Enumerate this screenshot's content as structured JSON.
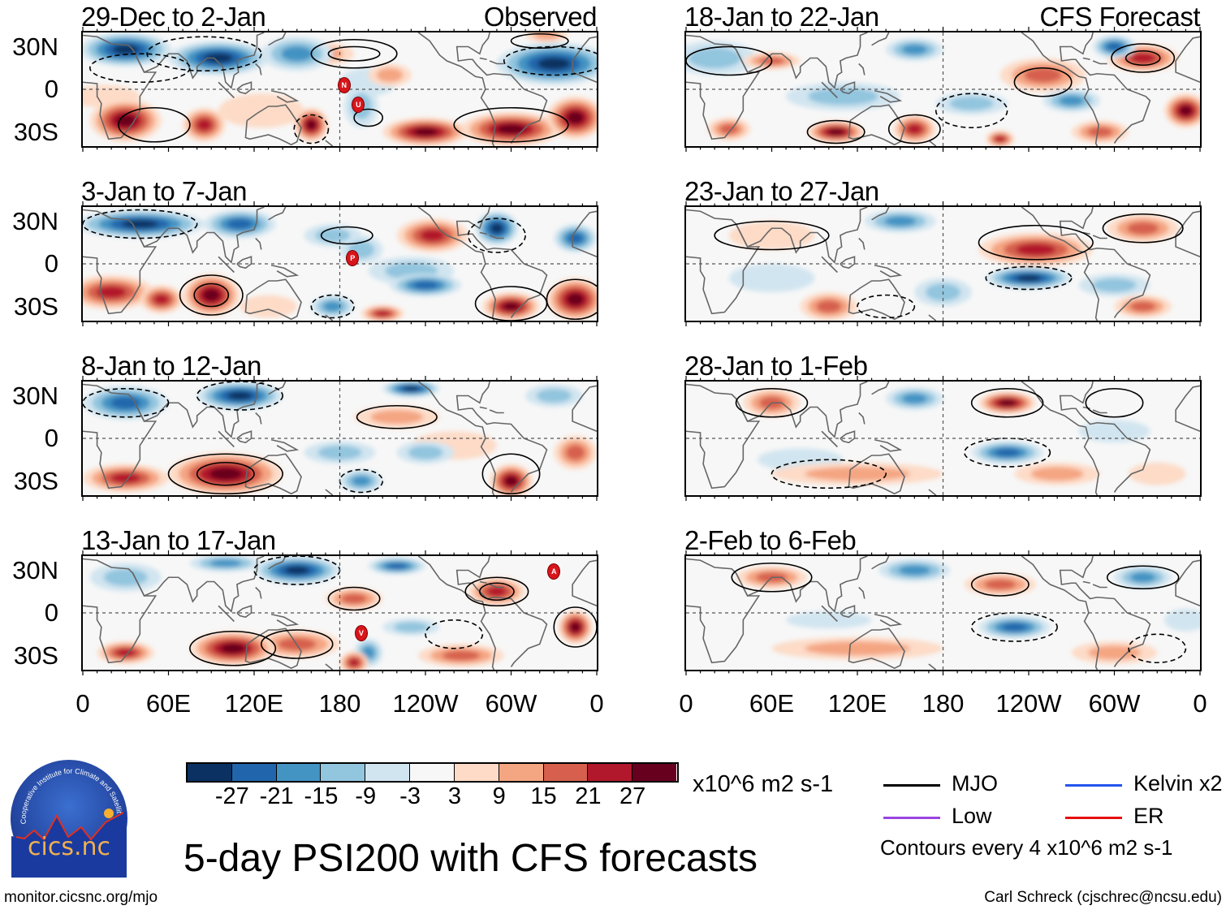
{
  "panels": [
    {
      "title": "29-Dec to 2-Jan",
      "tag": "Observed",
      "markers": [
        {
          "letter": "N",
          "lon": 183,
          "lat": 3
        },
        {
          "letter": "U",
          "lon": 193,
          "lat": -11
        }
      ]
    },
    {
      "title": "3-Jan to 7-Jan",
      "tag": "",
      "markers": [
        {
          "letter": "P",
          "lon": 189,
          "lat": 4
        }
      ]
    },
    {
      "title": "8-Jan to 12-Jan",
      "tag": "",
      "markers": []
    },
    {
      "title": "13-Jan to 17-Jan",
      "tag": "",
      "markers": [
        {
          "letter": "A",
          "lon": 330,
          "lat": 29
        },
        {
          "letter": "V",
          "lon": 195,
          "lat": -14
        }
      ]
    },
    {
      "title": "18-Jan to 22-Jan",
      "tag": "CFS Forecast",
      "markers": []
    },
    {
      "title": "23-Jan to 27-Jan",
      "tag": "",
      "markers": []
    },
    {
      "title": "28-Jan to 1-Feb",
      "tag": "",
      "markers": []
    },
    {
      "title": "2-Feb to 6-Feb",
      "tag": "",
      "markers": []
    }
  ],
  "axes": {
    "y_ticks": [
      "30N",
      "0",
      "30S"
    ],
    "x_ticks": [
      "0",
      "60E",
      "120E",
      "180",
      "120W",
      "60W",
      "0"
    ]
  },
  "colorbar": {
    "colors": [
      "#0a3161",
      "#2166ac",
      "#4393c3",
      "#92c5de",
      "#d1e5f0",
      "#f7f7f7",
      "#fddbc7",
      "#f4a582",
      "#d6604d",
      "#b2182b",
      "#67001f"
    ],
    "labels": [
      "-27",
      "-21",
      "-15",
      "-9",
      "-3",
      "3",
      "9",
      "15",
      "21",
      "27"
    ],
    "units": "x10^6 m2 s-1"
  },
  "legend": {
    "items": [
      {
        "label": "MJO",
        "color": "#000000"
      },
      {
        "label": "Kelvin x2",
        "color": "#2255ee"
      },
      {
        "label": "Low",
        "color": "#9a45e0"
      },
      {
        "label": "ER",
        "color": "#e81010"
      }
    ],
    "contour_note": "Contours every 4 x10^6 m2 s-1"
  },
  "main_title": "5-day PSI200 with CFS forecasts",
  "footer": {
    "left": "monitor.cicsnc.org/mjo",
    "right": "Carl Schreck (cjschrec@ncsu.edu)"
  },
  "logo": {
    "ring_text": "Cooperative Institute for Climate and Satellites",
    "name": "cics.nc"
  },
  "chart_data": {
    "type": "heatmap",
    "title": "5-day PSI200 with CFS forecasts",
    "units": "x10^6 m2 s-1",
    "levels": [
      -27,
      -21,
      -15,
      -9,
      -3,
      3,
      9,
      15,
      21,
      27
    ],
    "contour_interval": 4,
    "xlim": [
      "0",
      "0"
    ],
    "ylim": [
      "30S",
      "30N"
    ],
    "columns": [
      "Observed",
      "CFS Forecast"
    ]
  }
}
